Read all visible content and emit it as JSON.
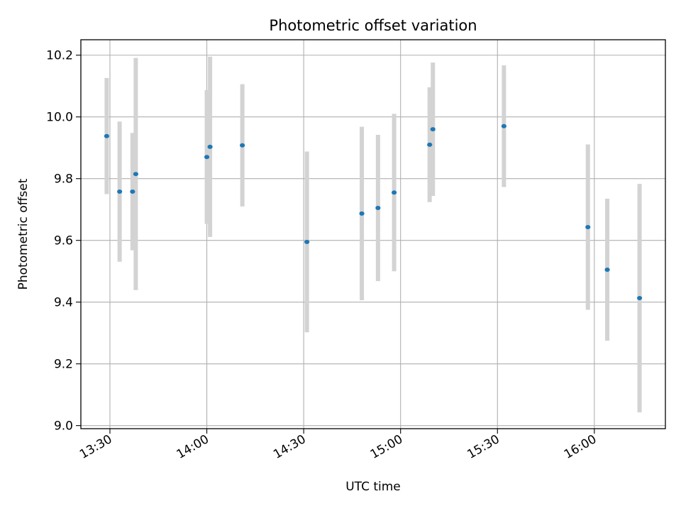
{
  "chart_data": {
    "type": "scatter",
    "title": "Photometric offset variation",
    "xlabel": "UTC time",
    "ylabel": "Photometric offset",
    "x_ticks": [
      "13:30",
      "14:00",
      "14:30",
      "15:00",
      "15:30",
      "16:00"
    ],
    "y_ticks": [
      "9.0",
      "9.2",
      "9.4",
      "9.6",
      "9.8",
      "10.0",
      "10.2"
    ],
    "xlim": [
      "13:21",
      "16:22"
    ],
    "ylim": [
      8.99,
      10.25
    ],
    "grid": true,
    "series": [
      {
        "marker_color": "#1f77b4",
        "errorbar_color": "#d3d3d3",
        "points": [
          {
            "x": "13:29",
            "y": 9.938,
            "err": 0.188
          },
          {
            "x": "13:33",
            "y": 9.758,
            "err": 0.227
          },
          {
            "x": "13:37",
            "y": 9.758,
            "err": 0.19
          },
          {
            "x": "13:38",
            "y": 9.815,
            "err": 0.376
          },
          {
            "x": "14:00",
            "y": 9.87,
            "err": 0.217
          },
          {
            "x": "14:01",
            "y": 9.903,
            "err": 0.292
          },
          {
            "x": "14:11",
            "y": 9.908,
            "err": 0.198
          },
          {
            "x": "14:31",
            "y": 9.595,
            "err": 0.293
          },
          {
            "x": "14:48",
            "y": 9.687,
            "err": 0.281
          },
          {
            "x": "14:53",
            "y": 9.705,
            "err": 0.237
          },
          {
            "x": "14:58",
            "y": 9.755,
            "err": 0.255
          },
          {
            "x": "15:09",
            "y": 9.91,
            "err": 0.186
          },
          {
            "x": "15:10",
            "y": 9.96,
            "err": 0.216
          },
          {
            "x": "15:32",
            "y": 9.97,
            "err": 0.197
          },
          {
            "x": "15:58",
            "y": 9.643,
            "err": 0.268
          },
          {
            "x": "16:04",
            "y": 9.505,
            "err": 0.23
          },
          {
            "x": "16:14",
            "y": 9.413,
            "err": 0.37
          }
        ]
      }
    ]
  }
}
